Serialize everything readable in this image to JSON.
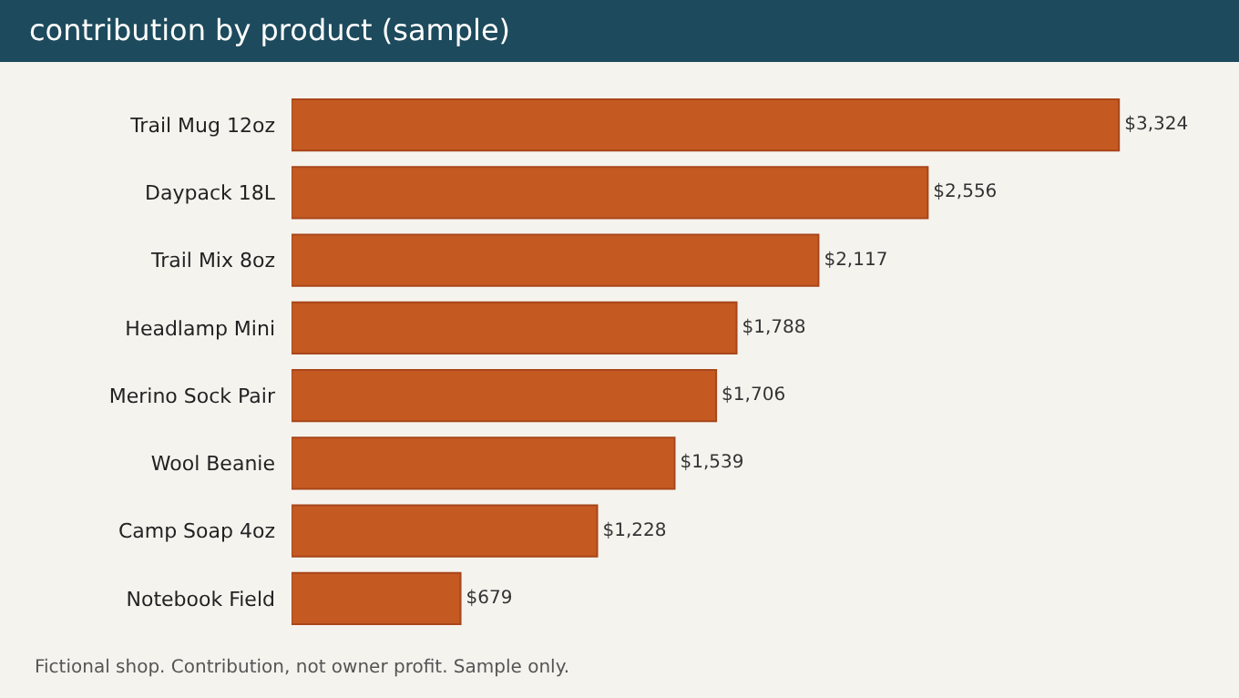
{
  "chart_data": {
    "type": "bar",
    "orientation": "horizontal",
    "title": "contribution by product (sample)",
    "categories": [
      "Trail Mug 12oz",
      "Daypack 18L",
      "Trail Mix 8oz",
      "Headlamp Mini",
      "Merino Sock Pair",
      "Wool Beanie",
      "Camp Soap 4oz",
      "Notebook Field"
    ],
    "values": [
      3324,
      2556,
      2117,
      1788,
      1706,
      1539,
      1228,
      679
    ],
    "value_labels": [
      "$3,324",
      "$2,556",
      "$2,117",
      "$1,788",
      "$1,706",
      "$1,539",
      "$1,228",
      "$679"
    ],
    "color": "#c45a22",
    "annotations": [
      "Fictional shop. Contribution, not owner profit. Sample only."
    ]
  }
}
